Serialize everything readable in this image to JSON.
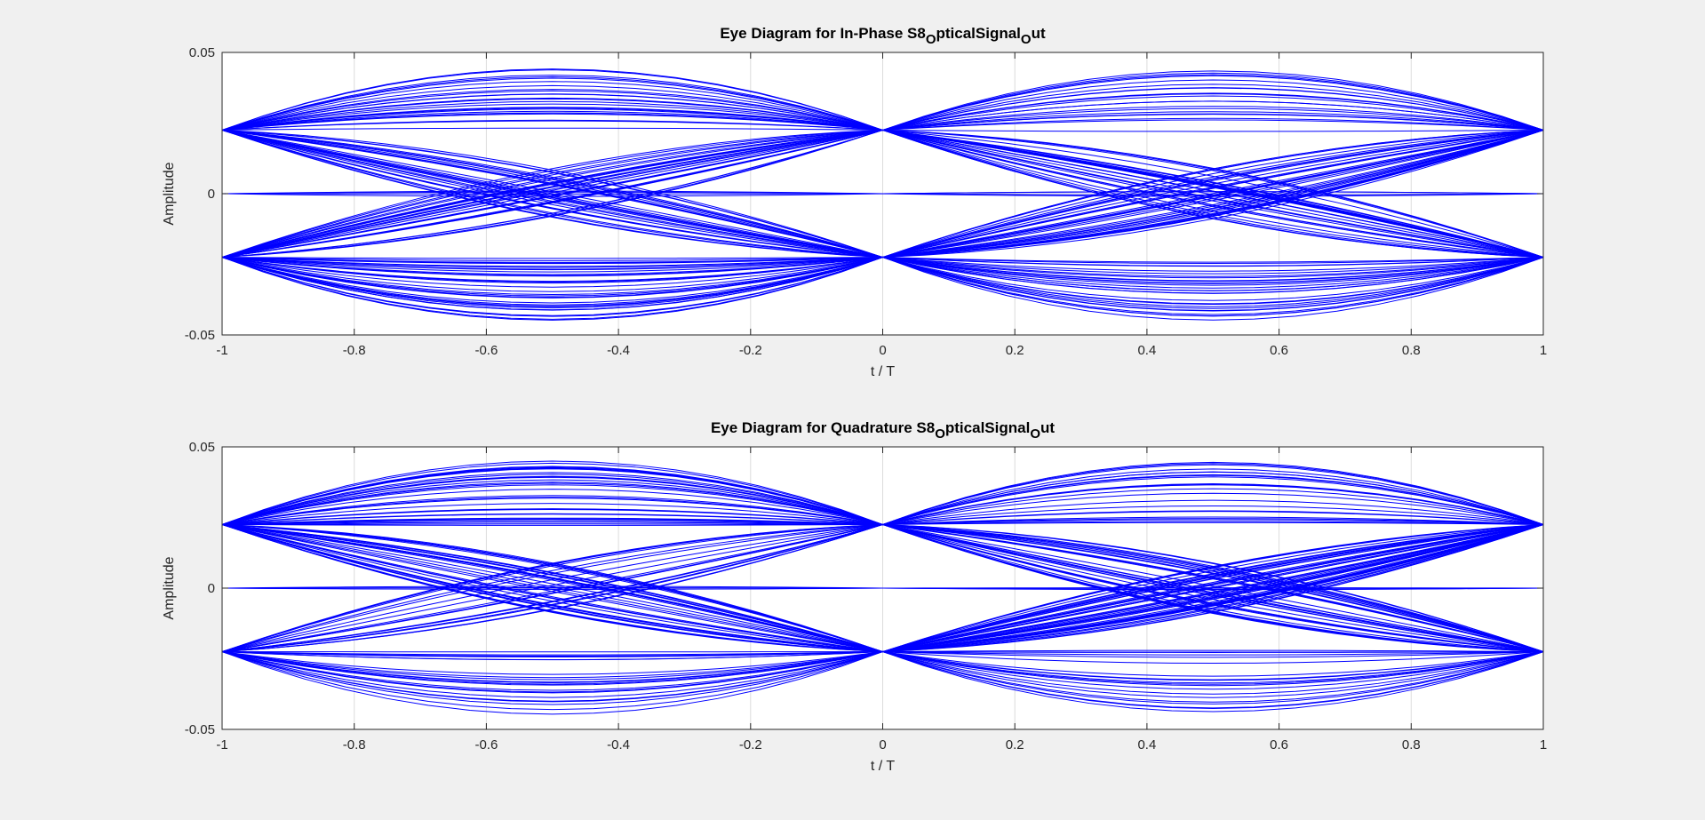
{
  "figure": {
    "background": "#f0f0f0",
    "axes_background": "#ffffff",
    "line_color": "#0000ff",
    "grid_color": "#dcdcdc"
  },
  "chart_data": [
    {
      "type": "line",
      "title": {
        "parts": [
          {
            "text": "Eye Diagram for In-Phase S8",
            "sub": false
          },
          {
            "text": "O",
            "sub": true
          },
          {
            "text": "pticalSignal",
            "sub": false
          },
          {
            "text": "O",
            "sub": true
          },
          {
            "text": "ut",
            "sub": false
          }
        ]
      },
      "xlabel": "t / T",
      "ylabel": "Amplitude",
      "xlim": [
        -1,
        1
      ],
      "ylim": [
        -0.05,
        0.05
      ],
      "xticks": [
        -1,
        -0.8,
        -0.6,
        -0.4,
        -0.2,
        0,
        0.2,
        0.4,
        0.6,
        0.8,
        1
      ],
      "xtick_labels": [
        "-1",
        "-0.8",
        "-0.6",
        "-0.4",
        "-0.2",
        "0",
        "0.2",
        "0.4",
        "0.6",
        "0.8",
        "1"
      ],
      "yticks": [
        -0.05,
        0,
        0.05
      ],
      "ytick_labels": [
        "-0.05",
        "0",
        "0.05"
      ],
      "grid": true,
      "legend": "none",
      "samples_per_symbol": 16,
      "symbol_levels": [
        0.0225,
        0,
        -0.0225
      ],
      "crossing_amplitude": 0.0225,
      "midpoint_peak_range": [
        0.022,
        0.045
      ],
      "series_count": 120
    },
    {
      "type": "line",
      "title": {
        "parts": [
          {
            "text": "Eye Diagram for Quadrature S8",
            "sub": false
          },
          {
            "text": "O",
            "sub": true
          },
          {
            "text": "pticalSignal",
            "sub": false
          },
          {
            "text": "O",
            "sub": true
          },
          {
            "text": "ut",
            "sub": false
          }
        ]
      },
      "xlabel": "t / T",
      "ylabel": "Amplitude",
      "xlim": [
        -1,
        1
      ],
      "ylim": [
        -0.05,
        0.05
      ],
      "xticks": [
        -1,
        -0.8,
        -0.6,
        -0.4,
        -0.2,
        0,
        0.2,
        0.4,
        0.6,
        0.8,
        1
      ],
      "xtick_labels": [
        "-1",
        "-0.8",
        "-0.6",
        "-0.4",
        "-0.2",
        "0",
        "0.2",
        "0.4",
        "0.6",
        "0.8",
        "1"
      ],
      "yticks": [
        -0.05,
        0,
        0.05
      ],
      "ytick_labels": [
        "-0.05",
        "0",
        "0.05"
      ],
      "grid": true,
      "legend": "none",
      "samples_per_symbol": 16,
      "symbol_levels": [
        0.0225,
        0,
        -0.0225
      ],
      "crossing_amplitude": 0.0225,
      "midpoint_peak_range": [
        0.022,
        0.045
      ],
      "series_count": 120
    }
  ]
}
